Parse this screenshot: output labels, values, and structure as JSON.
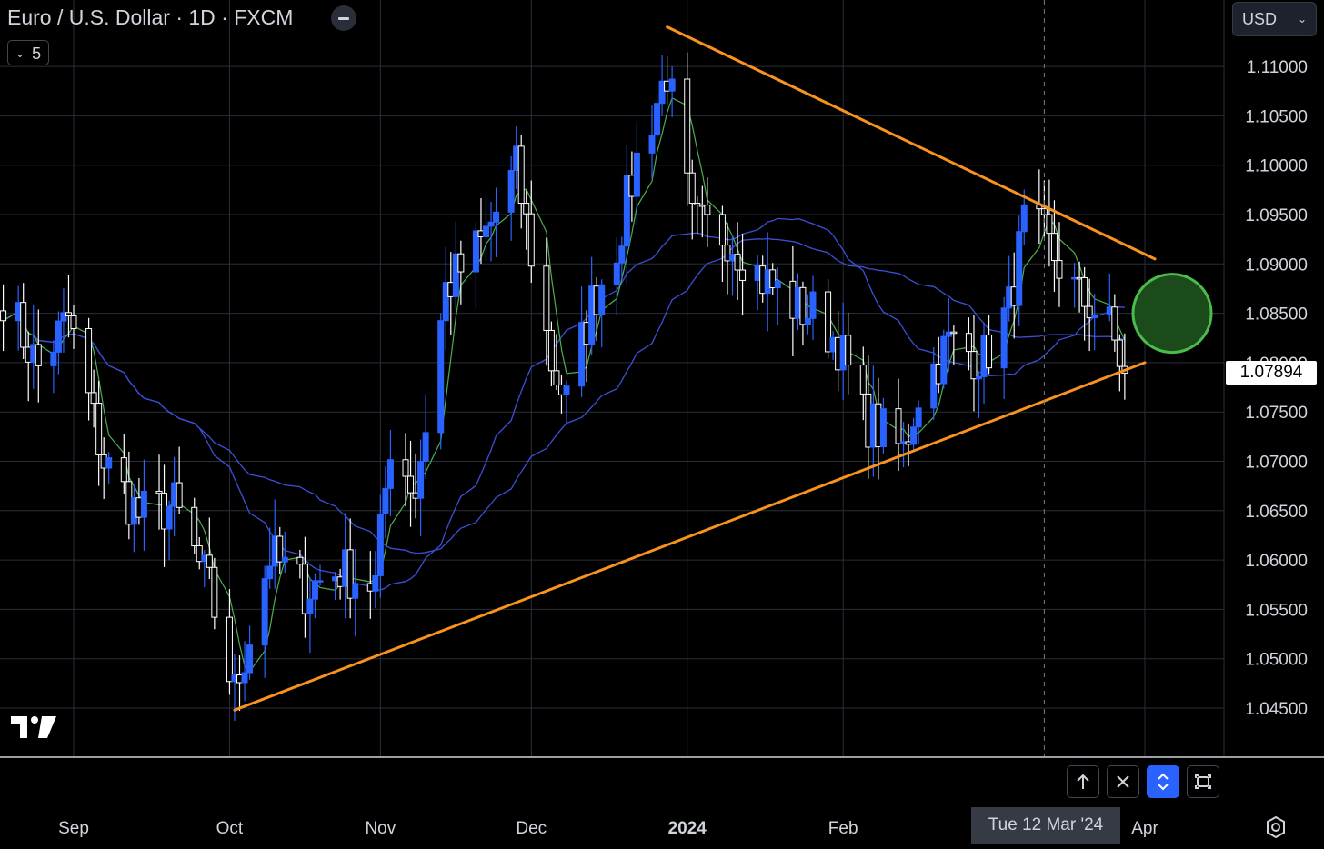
{
  "header": {
    "title": "Euro / U.S. Dollar · 1D · FXCM",
    "collapse_count": "5",
    "currency": "USD"
  },
  "price_marker": "1.07894",
  "crosshair_date": "Tue 12 Mar '24",
  "icons": [
    "minimize-icon",
    "chevron-down-icon",
    "tradingview-logo-icon",
    "scroll-up-icon",
    "close-icon",
    "scale-toggle-icon",
    "reset-view-icon",
    "settings-icon"
  ],
  "colors": {
    "background": "#000000",
    "grid": "#2a2e39",
    "up_candle": "#2962ff",
    "down_candle": "#ffffff",
    "trendline": "#f7931e",
    "ma_fast": "#4caf50",
    "ma_slow": "#3d4fd6",
    "highlight_circle_fill": "#1b4a1b",
    "highlight_circle_stroke": "#4cbb4c"
  },
  "chart_data": {
    "type": "candlestick",
    "symbol": "Euro / U.S. Dollar",
    "interval": "1D",
    "ylim": [
      1.0405,
      1.1135
    ],
    "y_ticks": [
      "1.04500",
      "1.05000",
      "1.05500",
      "1.06000",
      "1.06500",
      "1.07000",
      "1.07500",
      "1.08000",
      "1.08500",
      "1.09000",
      "1.09500",
      "1.10000",
      "1.10500",
      "1.11000"
    ],
    "x_ticks": [
      {
        "label": "Sep",
        "date": "2023-09-01"
      },
      {
        "label": "Oct",
        "date": "2023-10-02"
      },
      {
        "label": "Nov",
        "date": "2023-11-01"
      },
      {
        "label": "Dec",
        "date": "2023-12-01"
      },
      {
        "label": "2024",
        "date": "2024-01-01",
        "bold": true
      },
      {
        "label": "Feb",
        "date": "2024-02-01"
      },
      {
        "label": "Apr",
        "date": "2024-04-01"
      }
    ],
    "closes": [
      {
        "date": "2023-08-18",
        "close": 1.087
      },
      {
        "date": "2023-08-25",
        "close": 1.0795
      },
      {
        "date": "2023-08-31",
        "close": 1.0845
      },
      {
        "date": "2023-09-07",
        "close": 1.07
      },
      {
        "date": "2023-09-14",
        "close": 1.0645
      },
      {
        "date": "2023-09-21",
        "close": 1.0655
      },
      {
        "date": "2023-09-28",
        "close": 1.057
      },
      {
        "date": "2023-10-03",
        "close": 1.0465
      },
      {
        "date": "2023-10-10",
        "close": 1.0605
      },
      {
        "date": "2023-10-17",
        "close": 1.057
      },
      {
        "date": "2023-10-24",
        "close": 1.059
      },
      {
        "date": "2023-10-31",
        "close": 1.0575
      },
      {
        "date": "2023-11-03",
        "close": 1.072
      },
      {
        "date": "2023-11-08",
        "close": 1.067
      },
      {
        "date": "2023-11-14",
        "close": 1.0875
      },
      {
        "date": "2023-11-21",
        "close": 1.092
      },
      {
        "date": "2023-11-28",
        "close": 1.0995
      },
      {
        "date": "2023-12-05",
        "close": 1.08
      },
      {
        "date": "2023-12-08",
        "close": 1.076
      },
      {
        "date": "2023-12-13",
        "close": 1.086
      },
      {
        "date": "2023-12-18",
        "close": 1.092
      },
      {
        "date": "2023-12-22",
        "close": 1.1005
      },
      {
        "date": "2023-12-28",
        "close": 1.1095
      },
      {
        "date": "2024-01-02",
        "close": 1.094
      },
      {
        "date": "2024-01-09",
        "close": 1.093
      },
      {
        "date": "2024-01-16",
        "close": 1.0885
      },
      {
        "date": "2024-01-23",
        "close": 1.0855
      },
      {
        "date": "2024-01-26",
        "close": 1.085
      },
      {
        "date": "2024-01-31",
        "close": 1.082
      },
      {
        "date": "2024-02-05",
        "close": 1.0745
      },
      {
        "date": "2024-02-13",
        "close": 1.071
      },
      {
        "date": "2024-02-16",
        "close": 1.077
      },
      {
        "date": "2024-02-22",
        "close": 1.082
      },
      {
        "date": "2024-02-29",
        "close": 1.0805
      },
      {
        "date": "2024-03-05",
        "close": 1.0855
      },
      {
        "date": "2024-03-08",
        "close": 1.094
      },
      {
        "date": "2024-03-12",
        "close": 1.0925
      },
      {
        "date": "2024-03-19",
        "close": 1.0865
      },
      {
        "date": "2024-03-21",
        "close": 1.086
      },
      {
        "date": "2024-03-25",
        "close": 1.0835
      },
      {
        "date": "2024-03-28",
        "close": 1.0789
      }
    ],
    "last_price": 1.07894,
    "moving_averages": [
      {
        "color": "#4caf50",
        "period": "short"
      },
      {
        "color": "#3d4fd6",
        "period": "mid"
      },
      {
        "color": "#3d4fd6",
        "period": "long"
      }
    ],
    "annotations": [
      {
        "type": "trendline",
        "from": {
          "date": "2023-10-03",
          "price": 1.0448
        },
        "to": {
          "date": "2024-04-01",
          "price": 1.08
        }
      },
      {
        "type": "trendline",
        "from": {
          "date": "2023-12-28",
          "price": 1.114
        },
        "to": {
          "date": "2024-04-03",
          "price": 1.0905
        }
      },
      {
        "type": "circle",
        "center": {
          "date": "2024-04-01",
          "price": 1.085
        }
      }
    ]
  }
}
